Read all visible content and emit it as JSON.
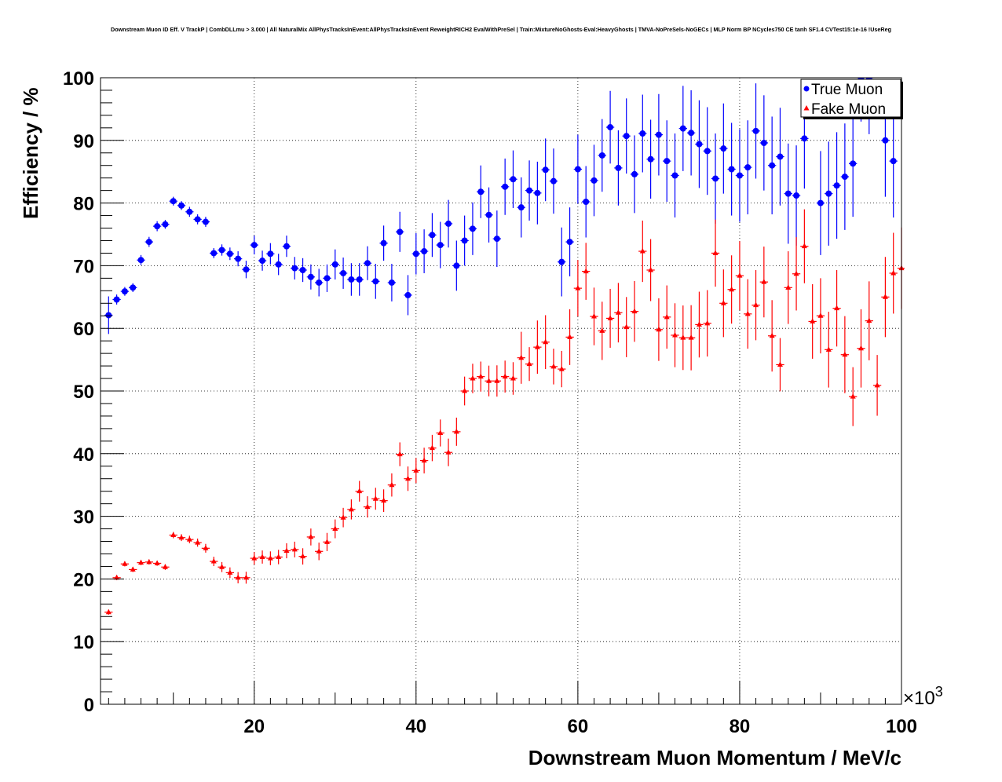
{
  "title": "Downstream Muon ID Eff. V TrackP | CombDLLmu > 3.000 | All NaturalMix AllPhysTracksInEvent:AllPhysTracksInEvent ReweightRICH2 EvalWithPreSel | Train:MixtureNoGhosts-Eval:HeavyGhosts | TMVA-NoPreSels-NoGECs | MLP Norm BP NCycles750 CE tanh SF1.4 CVTest15:1e-16 !UseReg",
  "chart_data": {
    "type": "scatter",
    "xlabel": "Downstream Muon Momentum / MeV/c",
    "ylabel": "Efficiency / %",
    "x_multiplier_label": "×10",
    "x_multiplier_exp": "3",
    "xlim": [
      1,
      100
    ],
    "ylim": [
      0,
      100
    ],
    "x_ticks": [
      "20",
      "40",
      "60",
      "80",
      "100"
    ],
    "y_ticks": [
      "0",
      "10",
      "20",
      "30",
      "40",
      "50",
      "60",
      "70",
      "80",
      "90",
      "100"
    ],
    "grid": true,
    "legend_position": "top-right",
    "series": [
      {
        "name": "True Muon",
        "color": "#0000ff",
        "marker": "circle",
        "x": [
          2,
          3,
          4,
          5,
          6,
          7,
          8,
          9,
          10,
          11,
          12,
          13,
          14,
          15,
          16,
          17,
          18,
          19,
          20,
          21,
          22,
          23,
          24,
          25,
          26,
          27,
          28,
          29,
          30,
          31,
          32,
          33,
          34,
          35,
          36,
          37,
          38,
          39,
          40,
          41,
          42,
          43,
          44,
          45,
          46,
          47,
          48,
          49,
          50,
          51,
          52,
          53,
          54,
          55,
          56,
          57,
          58,
          59,
          60,
          61,
          62,
          63,
          64,
          65,
          66,
          67,
          68,
          69,
          70,
          71,
          72,
          73,
          74,
          75,
          76,
          77,
          78,
          79,
          80,
          81,
          82,
          83,
          84,
          85,
          86,
          87,
          88,
          90,
          91,
          92,
          93,
          94,
          95,
          96,
          98,
          99
        ],
        "y": [
          62.1,
          64.6,
          65.9,
          66.5,
          70.9,
          73.8,
          76.3,
          76.6,
          80.3,
          79.6,
          78.6,
          77.4,
          77.0,
          72.0,
          72.5,
          71.9,
          71.1,
          69.4,
          73.3,
          70.8,
          71.9,
          70.2,
          73.1,
          69.6,
          69.3,
          68.2,
          67.3,
          68.0,
          70.2,
          68.8,
          67.8,
          67.8,
          70.4,
          67.5,
          73.6,
          67.3,
          75.4,
          65.3,
          71.9,
          72.3,
          74.9,
          73.3,
          76.7,
          70.0,
          74.0,
          75.9,
          81.8,
          78.1,
          74.3,
          82.6,
          83.8,
          79.3,
          82.0,
          81.6,
          85.3,
          83.5,
          70.6,
          73.8,
          85.4,
          80.2,
          83.6,
          87.6,
          92.1,
          85.6,
          90.7,
          84.6,
          91.1,
          87.0,
          90.9,
          86.7,
          84.4,
          91.9,
          91.2,
          89.4,
          88.3,
          83.9,
          88.7,
          85.4,
          84.4,
          85.7,
          91.5,
          89.6,
          86.0,
          87.4,
          81.5,
          81.2,
          90.3,
          80.0,
          81.5,
          82.8,
          84.2,
          86.3,
          100.0,
          100.0,
          90.0,
          86.7
        ],
        "err": [
          3.0,
          0.8,
          0.7,
          0.7,
          0.8,
          0.8,
          0.8,
          0.7,
          0.7,
          0.7,
          0.8,
          0.8,
          0.8,
          0.8,
          0.9,
          1.0,
          1.2,
          1.4,
          1.5,
          1.6,
          1.7,
          1.7,
          1.7,
          1.8,
          1.9,
          2.0,
          2.2,
          2.2,
          2.4,
          2.5,
          2.6,
          2.6,
          2.7,
          2.8,
          2.8,
          3.0,
          3.2,
          3.2,
          3.3,
          3.5,
          3.5,
          3.7,
          3.8,
          4.0,
          4.0,
          4.2,
          4.2,
          4.4,
          4.5,
          4.5,
          4.6,
          4.8,
          4.8,
          5.0,
          5.0,
          5.2,
          5.5,
          5.5,
          5.5,
          5.7,
          5.7,
          5.8,
          5.8,
          6.0,
          6.0,
          6.2,
          6.2,
          6.3,
          6.5,
          6.5,
          6.7,
          6.8,
          6.8,
          7.0,
          7.0,
          7.2,
          7.2,
          7.4,
          7.4,
          7.5,
          7.6,
          7.6,
          7.8,
          7.8,
          8.0,
          8.0,
          8.0,
          8.3,
          8.3,
          8.5,
          8.5,
          8.5,
          7.0,
          9.0,
          9.0,
          9.0
        ]
      },
      {
        "name": "Fake Muon",
        "color": "#ff0000",
        "marker": "triangle",
        "x": [
          2,
          3,
          4,
          5,
          6,
          7,
          8,
          9,
          10,
          11,
          12,
          13,
          14,
          15,
          16,
          17,
          18,
          19,
          20,
          21,
          22,
          23,
          24,
          25,
          26,
          27,
          28,
          29,
          30,
          31,
          32,
          33,
          34,
          35,
          36,
          37,
          38,
          39,
          40,
          41,
          42,
          43,
          44,
          45,
          46,
          47,
          48,
          49,
          50,
          51,
          52,
          53,
          54,
          55,
          56,
          57,
          58,
          59,
          60,
          61,
          62,
          63,
          64,
          65,
          66,
          67,
          68,
          69,
          70,
          71,
          72,
          73,
          74,
          75,
          76,
          77,
          78,
          79,
          80,
          81,
          82,
          83,
          84,
          85,
          86,
          87,
          88,
          89,
          90,
          91,
          92,
          93,
          94,
          95,
          96,
          97,
          98,
          99,
          100
        ],
        "y": [
          14.7,
          20.2,
          22.4,
          21.5,
          22.6,
          22.7,
          22.5,
          21.9,
          27.0,
          26.6,
          26.3,
          25.8,
          24.9,
          22.8,
          21.9,
          21.0,
          20.2,
          20.2,
          23.3,
          23.5,
          23.3,
          23.5,
          24.5,
          24.7,
          23.6,
          26.7,
          24.4,
          25.9,
          28.0,
          29.8,
          31.1,
          34.0,
          31.5,
          32.8,
          32.5,
          35.0,
          39.9,
          36.0,
          37.3,
          38.9,
          40.9,
          43.3,
          40.2,
          43.5,
          50.0,
          52.0,
          52.3,
          51.6,
          51.6,
          52.3,
          52.0,
          55.3,
          54.3,
          57.0,
          57.8,
          53.9,
          53.5,
          58.6,
          66.4,
          69.1,
          61.9,
          59.6,
          61.6,
          62.5,
          60.2,
          62.7,
          72.3,
          69.3,
          59.8,
          61.8,
          58.9,
          58.5,
          58.5,
          60.6,
          60.8,
          72.0,
          64.0,
          66.2,
          68.4,
          62.3,
          63.7,
          67.4,
          58.8,
          54.2,
          66.5,
          68.7,
          73.1,
          61.1,
          62.0,
          56.6,
          63.2,
          55.8,
          49.1,
          56.8,
          61.2,
          50.9,
          65.0,
          68.8,
          69.6
        ]
      }
    ]
  }
}
